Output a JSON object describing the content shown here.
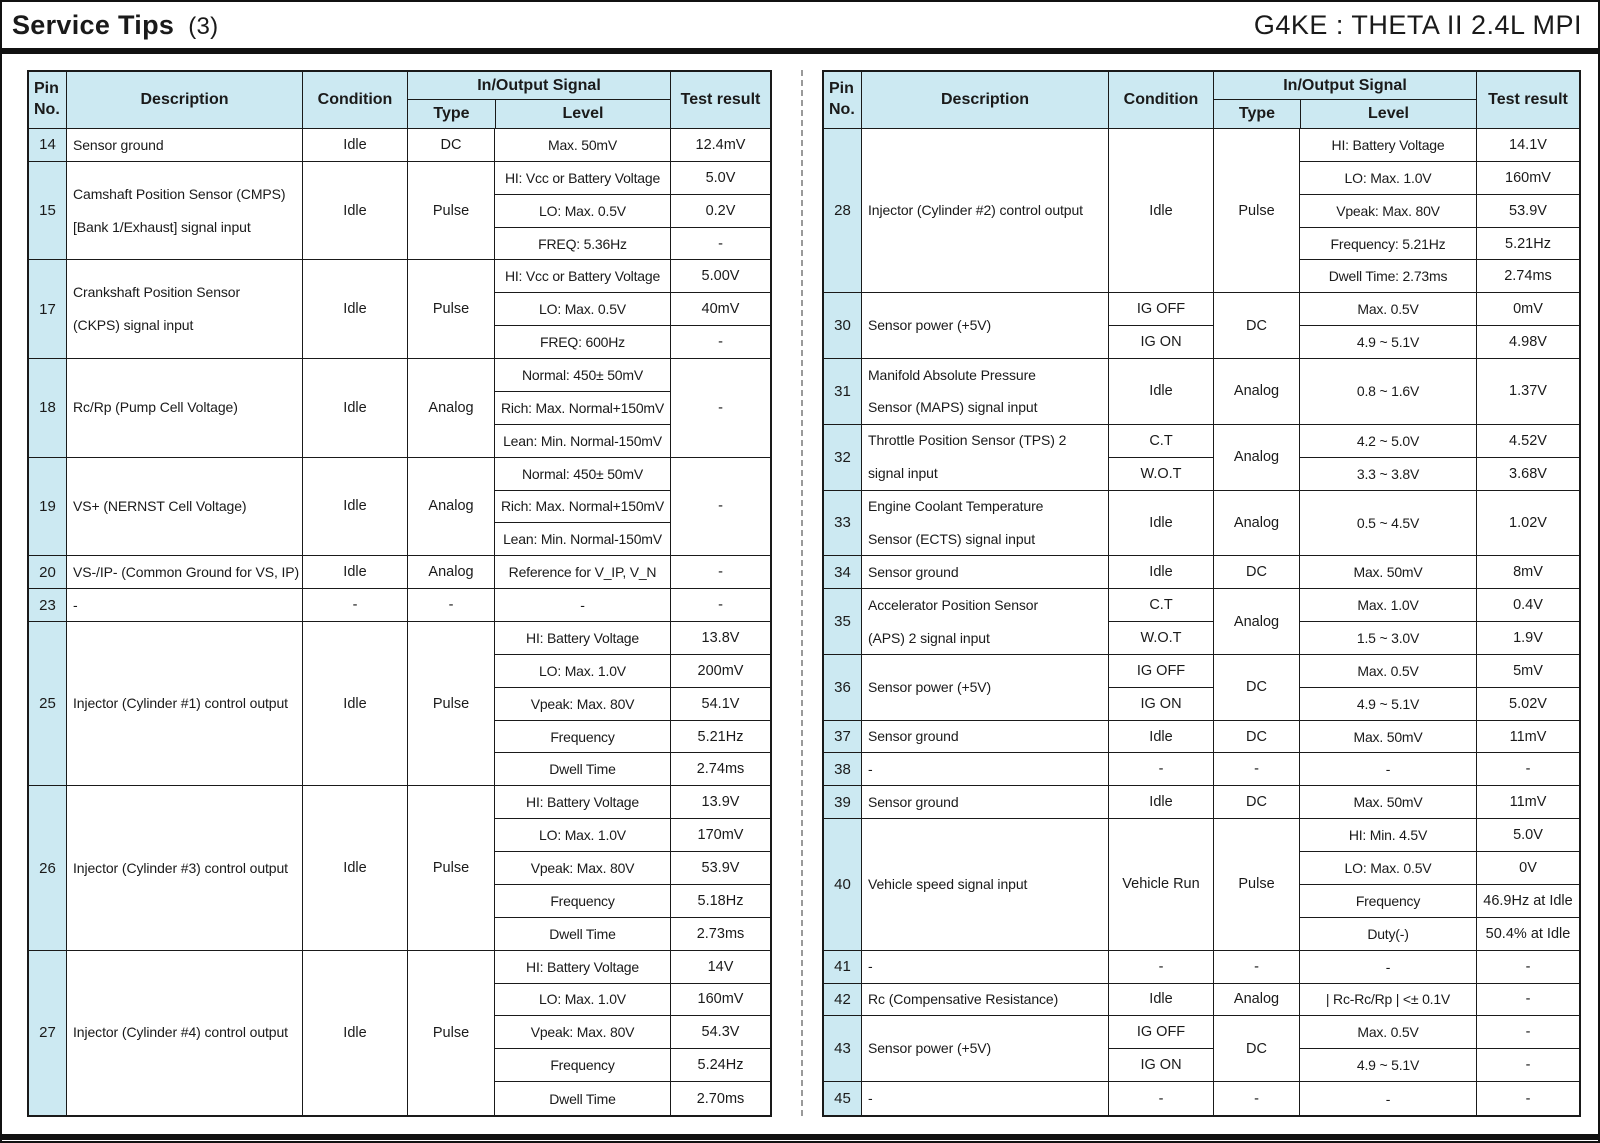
{
  "page": {
    "title": "Service Tips",
    "title_num": "(3)",
    "subtitle": "G4KE : THETA II 2.4L MPI"
  },
  "colors": {
    "header_bg": "#cce9f2",
    "border": "#1a1a1a",
    "divider": "#9a9a9a",
    "rule": "#111111"
  },
  "header": {
    "pin_line1": "Pin",
    "pin_line2": "No.",
    "description": "Description",
    "condition": "Condition",
    "io_signal": "In/Output Signal",
    "type": "Type",
    "level": "Level",
    "test_result": "Test result"
  },
  "left_table": {
    "rows": [
      {
        "pin": "14",
        "units": 1,
        "description": [
          "Sensor ground"
        ],
        "condition": [
          {
            "text": "Idle",
            "units": 1
          }
        ],
        "type": "DC",
        "levels": [
          {
            "text": "Max. 50mV",
            "units": 1
          }
        ],
        "results": [
          {
            "text": "12.4mV",
            "units": 1
          }
        ]
      },
      {
        "pin": "15",
        "units": 3,
        "description": [
          "Camshaft Position Sensor (CMPS)",
          "[Bank 1/Exhaust] signal input"
        ],
        "condition": [
          {
            "text": "Idle",
            "units": 3
          }
        ],
        "type": "Pulse",
        "levels": [
          {
            "text": "HI: Vcc or Battery Voltage",
            "units": 1
          },
          {
            "text": "LO: Max. 0.5V",
            "units": 1
          },
          {
            "text": "FREQ: 5.36Hz",
            "units": 1
          }
        ],
        "results": [
          {
            "text": "5.0V",
            "units": 1
          },
          {
            "text": "0.2V",
            "units": 1
          },
          {
            "text": "-",
            "units": 1
          }
        ]
      },
      {
        "pin": "17",
        "units": 3,
        "description": [
          "Crankshaft Position Sensor",
          "(CKPS) signal input"
        ],
        "condition": [
          {
            "text": "Idle",
            "units": 3
          }
        ],
        "type": "Pulse",
        "levels": [
          {
            "text": "HI: Vcc or Battery Voltage",
            "units": 1
          },
          {
            "text": "LO: Max. 0.5V",
            "units": 1
          },
          {
            "text": "FREQ: 600Hz",
            "units": 1
          }
        ],
        "results": [
          {
            "text": "5.00V",
            "units": 1
          },
          {
            "text": "40mV",
            "units": 1
          },
          {
            "text": "-",
            "units": 1
          }
        ]
      },
      {
        "pin": "18",
        "units": 3,
        "description": [
          "Rc/Rp (Pump Cell Voltage)"
        ],
        "condition": [
          {
            "text": "Idle",
            "units": 3
          }
        ],
        "type": "Analog",
        "levels": [
          {
            "text": "Normal: 450± 50mV",
            "units": 1
          },
          {
            "text": "Rich: Max. Normal+150mV",
            "units": 1
          },
          {
            "text": "Lean: Min. Normal-150mV",
            "units": 1
          }
        ],
        "results": [
          {
            "text": "-",
            "units": 3
          }
        ]
      },
      {
        "pin": "19",
        "units": 3,
        "description": [
          "VS+ (NERNST Cell Voltage)"
        ],
        "condition": [
          {
            "text": "Idle",
            "units": 3
          }
        ],
        "type": "Analog",
        "levels": [
          {
            "text": "Normal: 450± 50mV",
            "units": 1
          },
          {
            "text": "Rich: Max. Normal+150mV",
            "units": 1
          },
          {
            "text": "Lean: Min. Normal-150mV",
            "units": 1
          }
        ],
        "results": [
          {
            "text": "-",
            "units": 3
          }
        ]
      },
      {
        "pin": "20",
        "units": 1,
        "description": [
          "VS-/IP- (Common Ground for VS, IP)"
        ],
        "condition": [
          {
            "text": "Idle",
            "units": 1
          }
        ],
        "type": "Analog",
        "levels": [
          {
            "text": "Reference for V_IP, V_N",
            "units": 1
          }
        ],
        "results": [
          {
            "text": "-",
            "units": 1
          }
        ]
      },
      {
        "pin": "23",
        "units": 1,
        "description": [
          "-"
        ],
        "condition": [
          {
            "text": "-",
            "units": 1
          }
        ],
        "type": "-",
        "levels": [
          {
            "text": "-",
            "units": 1
          }
        ],
        "results": [
          {
            "text": "-",
            "units": 1
          }
        ]
      },
      {
        "pin": "25",
        "units": 5,
        "description": [
          "Injector (Cylinder #1) control output"
        ],
        "condition": [
          {
            "text": "Idle",
            "units": 5
          }
        ],
        "type": "Pulse",
        "levels": [
          {
            "text": "HI: Battery Voltage",
            "units": 1
          },
          {
            "text": "LO: Max. 1.0V",
            "units": 1
          },
          {
            "text": "Vpeak: Max. 80V",
            "units": 1
          },
          {
            "text": "Frequency",
            "units": 1
          },
          {
            "text": "Dwell Time",
            "units": 1
          }
        ],
        "results": [
          {
            "text": "13.8V",
            "units": 1
          },
          {
            "text": "200mV",
            "units": 1
          },
          {
            "text": "54.1V",
            "units": 1
          },
          {
            "text": "5.21Hz",
            "units": 1
          },
          {
            "text": "2.74ms",
            "units": 1
          }
        ]
      },
      {
        "pin": "26",
        "units": 5,
        "description": [
          "Injector (Cylinder #3) control output"
        ],
        "condition": [
          {
            "text": "Idle",
            "units": 5
          }
        ],
        "type": "Pulse",
        "levels": [
          {
            "text": "HI: Battery Voltage",
            "units": 1
          },
          {
            "text": "LO: Max. 1.0V",
            "units": 1
          },
          {
            "text": "Vpeak: Max. 80V",
            "units": 1
          },
          {
            "text": "Frequency",
            "units": 1
          },
          {
            "text": "Dwell Time",
            "units": 1
          }
        ],
        "results": [
          {
            "text": "13.9V",
            "units": 1
          },
          {
            "text": "170mV",
            "units": 1
          },
          {
            "text": "53.9V",
            "units": 1
          },
          {
            "text": "5.18Hz",
            "units": 1
          },
          {
            "text": "2.73ms",
            "units": 1
          }
        ]
      },
      {
        "pin": "27",
        "units": 5,
        "description": [
          "Injector (Cylinder #4) control output"
        ],
        "condition": [
          {
            "text": "Idle",
            "units": 5
          }
        ],
        "type": "Pulse",
        "levels": [
          {
            "text": "HI: Battery Voltage",
            "units": 1
          },
          {
            "text": "LO: Max. 1.0V",
            "units": 1
          },
          {
            "text": "Vpeak: Max. 80V",
            "units": 1
          },
          {
            "text": "Frequency",
            "units": 1
          },
          {
            "text": "Dwell Time",
            "units": 1
          }
        ],
        "results": [
          {
            "text": "14V",
            "units": 1
          },
          {
            "text": "160mV",
            "units": 1
          },
          {
            "text": "54.3V",
            "units": 1
          },
          {
            "text": "5.24Hz",
            "units": 1
          },
          {
            "text": "2.70ms",
            "units": 1
          }
        ]
      }
    ]
  },
  "right_table": {
    "rows": [
      {
        "pin": "28",
        "units": 5,
        "description": [
          "Injector (Cylinder #2) control output"
        ],
        "condition": [
          {
            "text": "Idle",
            "units": 5
          }
        ],
        "type": "Pulse",
        "levels": [
          {
            "text": "HI: Battery Voltage",
            "units": 1
          },
          {
            "text": "LO: Max. 1.0V",
            "units": 1
          },
          {
            "text": "Vpeak: Max. 80V",
            "units": 1
          },
          {
            "text": "Frequency: 5.21Hz",
            "units": 1
          },
          {
            "text": "Dwell Time: 2.73ms",
            "units": 1
          }
        ],
        "results": [
          {
            "text": "14.1V",
            "units": 1
          },
          {
            "text": "160mV",
            "units": 1
          },
          {
            "text": "53.9V",
            "units": 1
          },
          {
            "text": "5.21Hz",
            "units": 1
          },
          {
            "text": "2.74ms",
            "units": 1
          }
        ]
      },
      {
        "pin": "30",
        "units": 2,
        "description": [
          "Sensor power (+5V)"
        ],
        "condition": [
          {
            "text": "IG OFF",
            "units": 1
          },
          {
            "text": "IG ON",
            "units": 1
          }
        ],
        "type": "DC",
        "levels": [
          {
            "text": "Max. 0.5V",
            "units": 1
          },
          {
            "text": "4.9 ~ 5.1V",
            "units": 1
          }
        ],
        "results": [
          {
            "text": "0mV",
            "units": 1
          },
          {
            "text": "4.98V",
            "units": 1
          }
        ]
      },
      {
        "pin": "31",
        "units": 2,
        "description": [
          "Manifold Absolute Pressure",
          "Sensor (MAPS) signal input"
        ],
        "condition": [
          {
            "text": "Idle",
            "units": 2
          }
        ],
        "type": "Analog",
        "levels": [
          {
            "text": "0.8 ~ 1.6V",
            "units": 2
          }
        ],
        "results": [
          {
            "text": "1.37V",
            "units": 2
          }
        ]
      },
      {
        "pin": "32",
        "units": 2,
        "description": [
          "Throttle Position Sensor (TPS) 2",
          "signal input"
        ],
        "condition": [
          {
            "text": "C.T",
            "units": 1
          },
          {
            "text": "W.O.T",
            "units": 1
          }
        ],
        "type": "Analog",
        "levels": [
          {
            "text": "4.2 ~ 5.0V",
            "units": 1
          },
          {
            "text": "3.3 ~ 3.8V",
            "units": 1
          }
        ],
        "results": [
          {
            "text": "4.52V",
            "units": 1
          },
          {
            "text": "3.68V",
            "units": 1
          }
        ]
      },
      {
        "pin": "33",
        "units": 2,
        "description": [
          "Engine Coolant Temperature",
          "Sensor (ECTS) signal input"
        ],
        "condition": [
          {
            "text": "Idle",
            "units": 2
          }
        ],
        "type": "Analog",
        "levels": [
          {
            "text": "0.5 ~ 4.5V",
            "units": 2
          }
        ],
        "results": [
          {
            "text": "1.02V",
            "units": 2
          }
        ]
      },
      {
        "pin": "34",
        "units": 1,
        "description": [
          "Sensor ground"
        ],
        "condition": [
          {
            "text": "Idle",
            "units": 1
          }
        ],
        "type": "DC",
        "levels": [
          {
            "text": "Max. 50mV",
            "units": 1
          }
        ],
        "results": [
          {
            "text": "8mV",
            "units": 1
          }
        ]
      },
      {
        "pin": "35",
        "units": 2,
        "description": [
          "Accelerator Position Sensor",
          "(APS) 2 signal input"
        ],
        "condition": [
          {
            "text": "C.T",
            "units": 1
          },
          {
            "text": "W.O.T",
            "units": 1
          }
        ],
        "type": "Analog",
        "levels": [
          {
            "text": "Max. 1.0V",
            "units": 1
          },
          {
            "text": "1.5 ~ 3.0V",
            "units": 1
          }
        ],
        "results": [
          {
            "text": "0.4V",
            "units": 1
          },
          {
            "text": "1.9V",
            "units": 1
          }
        ]
      },
      {
        "pin": "36",
        "units": 2,
        "description": [
          "Sensor power (+5V)"
        ],
        "condition": [
          {
            "text": "IG OFF",
            "units": 1
          },
          {
            "text": "IG ON",
            "units": 1
          }
        ],
        "type": "DC",
        "levels": [
          {
            "text": "Max. 0.5V",
            "units": 1
          },
          {
            "text": "4.9 ~ 5.1V",
            "units": 1
          }
        ],
        "results": [
          {
            "text": "5mV",
            "units": 1
          },
          {
            "text": "5.02V",
            "units": 1
          }
        ]
      },
      {
        "pin": "37",
        "units": 1,
        "description": [
          "Sensor ground"
        ],
        "condition": [
          {
            "text": "Idle",
            "units": 1
          }
        ],
        "type": "DC",
        "levels": [
          {
            "text": "Max. 50mV",
            "units": 1
          }
        ],
        "results": [
          {
            "text": "11mV",
            "units": 1
          }
        ]
      },
      {
        "pin": "38",
        "units": 1,
        "description": [
          "-"
        ],
        "condition": [
          {
            "text": "-",
            "units": 1
          }
        ],
        "type": "-",
        "levels": [
          {
            "text": "-",
            "units": 1
          }
        ],
        "results": [
          {
            "text": "-",
            "units": 1
          }
        ]
      },
      {
        "pin": "39",
        "units": 1,
        "description": [
          "Sensor ground"
        ],
        "condition": [
          {
            "text": "Idle",
            "units": 1
          }
        ],
        "type": "DC",
        "levels": [
          {
            "text": "Max. 50mV",
            "units": 1
          }
        ],
        "results": [
          {
            "text": "11mV",
            "units": 1
          }
        ]
      },
      {
        "pin": "40",
        "units": 4,
        "description": [
          "Vehicle speed signal input"
        ],
        "condition": [
          {
            "text": "Vehicle Run",
            "units": 4
          }
        ],
        "type": "Pulse",
        "levels": [
          {
            "text": "HI: Min. 4.5V",
            "units": 1
          },
          {
            "text": "LO: Max. 0.5V",
            "units": 1
          },
          {
            "text": "Frequency",
            "units": 1
          },
          {
            "text": "Duty(-)",
            "units": 1
          }
        ],
        "results": [
          {
            "text": "5.0V",
            "units": 1
          },
          {
            "text": "0V",
            "units": 1
          },
          {
            "text": "46.9Hz at Idle",
            "units": 1
          },
          {
            "text": "50.4% at Idle",
            "units": 1
          }
        ]
      },
      {
        "pin": "41",
        "units": 1,
        "description": [
          "-"
        ],
        "condition": [
          {
            "text": "-",
            "units": 1
          }
        ],
        "type": "-",
        "levels": [
          {
            "text": "-",
            "units": 1
          }
        ],
        "results": [
          {
            "text": "-",
            "units": 1
          }
        ]
      },
      {
        "pin": "42",
        "units": 1,
        "description": [
          "Rc (Compensative Resistance)"
        ],
        "condition": [
          {
            "text": "Idle",
            "units": 1
          }
        ],
        "type": "Analog",
        "levels": [
          {
            "text": "| Rc-Rc/Rp | <± 0.1V",
            "units": 1
          }
        ],
        "results": [
          {
            "text": "-",
            "units": 1
          }
        ]
      },
      {
        "pin": "43",
        "units": 2,
        "description": [
          "Sensor power (+5V)"
        ],
        "condition": [
          {
            "text": "IG OFF",
            "units": 1
          },
          {
            "text": "IG ON",
            "units": 1
          }
        ],
        "type": "DC",
        "levels": [
          {
            "text": "Max. 0.5V",
            "units": 1
          },
          {
            "text": "4.9 ~ 5.1V",
            "units": 1
          }
        ],
        "results": [
          {
            "text": "-",
            "units": 1
          },
          {
            "text": "-",
            "units": 1
          }
        ]
      },
      {
        "pin": "45",
        "units": 1,
        "description": [
          "-"
        ],
        "condition": [
          {
            "text": "-",
            "units": 1
          }
        ],
        "type": "-",
        "levels": [
          {
            "text": "-",
            "units": 1
          }
        ],
        "results": [
          {
            "text": "-",
            "units": 1
          }
        ]
      }
    ]
  }
}
